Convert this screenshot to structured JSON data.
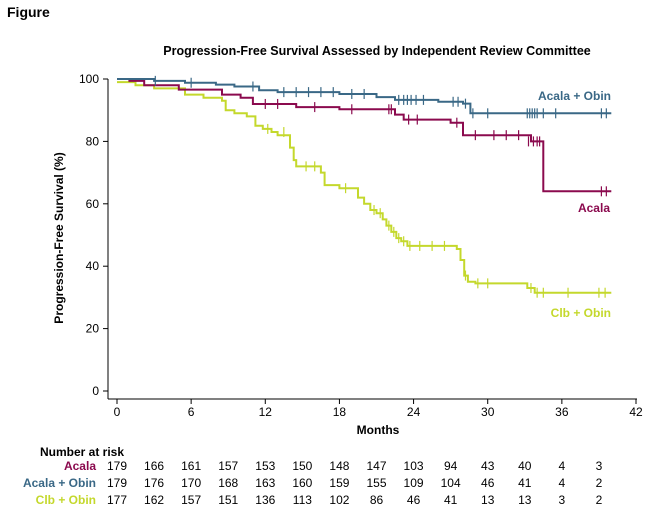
{
  "figure_label": "Figure",
  "colors": {
    "acala": "#8b0a4e",
    "acala_obin": "#3a6886",
    "clb_obin": "#c4d82c",
    "axis": "#000000"
  },
  "chart_data": {
    "type": "line",
    "title": "Progression-Free Survival Assessed by Independent Review Committee",
    "xlabel": "Months",
    "ylabel": "Progression-Free Survival (%)",
    "xlim": [
      0,
      42
    ],
    "ylim": [
      0,
      100
    ],
    "xticks": [
      0,
      6,
      12,
      18,
      24,
      30,
      36,
      42
    ],
    "yticks": [
      0,
      20,
      40,
      60,
      80,
      100
    ],
    "grid": false,
    "series": [
      {
        "name": "Acala + Obin",
        "color": "#3a6886",
        "step_points": [
          [
            0,
            100
          ],
          [
            3,
            99.4
          ],
          [
            5.5,
            98.8
          ],
          [
            8,
            98.2
          ],
          [
            9.5,
            97.6
          ],
          [
            11.5,
            96.4
          ],
          [
            13,
            95.8
          ],
          [
            18,
            95.2
          ],
          [
            21,
            94.2
          ],
          [
            22.5,
            93.3
          ],
          [
            26,
            92.7
          ],
          [
            28,
            92.1
          ],
          [
            28.6,
            89
          ],
          [
            40,
            89
          ]
        ],
        "censors": [
          [
            3.1,
            99.4
          ],
          [
            6,
            98.8
          ],
          [
            11,
            97.6
          ],
          [
            13.5,
            95.8
          ],
          [
            14.5,
            95.8
          ],
          [
            15.5,
            95.8
          ],
          [
            16.5,
            95.8
          ],
          [
            17.5,
            95.8
          ],
          [
            19,
            95.2
          ],
          [
            20,
            95.2
          ],
          [
            22.8,
            93.3
          ],
          [
            23.2,
            93.3
          ],
          [
            23.5,
            93.3
          ],
          [
            23.8,
            93.3
          ],
          [
            24.2,
            93.3
          ],
          [
            24.8,
            93.3
          ],
          [
            27.2,
            92.7
          ],
          [
            27.6,
            92.7
          ],
          [
            28.2,
            92.1
          ],
          [
            28.8,
            89
          ],
          [
            30,
            89
          ],
          [
            33.2,
            89
          ],
          [
            33.4,
            89
          ],
          [
            33.6,
            89
          ],
          [
            33.8,
            89
          ],
          [
            34,
            89
          ],
          [
            34.5,
            89
          ],
          [
            35.5,
            89
          ],
          [
            39.2,
            89
          ],
          [
            39.6,
            89
          ]
        ]
      },
      {
        "name": "Acala",
        "color": "#8b0a4e",
        "step_points": [
          [
            0,
            100
          ],
          [
            1,
            99.4
          ],
          [
            2.2,
            98
          ],
          [
            5,
            96.6
          ],
          [
            8.5,
            95
          ],
          [
            10,
            94
          ],
          [
            11,
            92
          ],
          [
            14.5,
            91
          ],
          [
            18,
            90.3
          ],
          [
            22.5,
            88.6
          ],
          [
            23.2,
            87
          ],
          [
            27,
            86
          ],
          [
            28,
            82
          ],
          [
            33.5,
            80
          ],
          [
            34.5,
            64
          ],
          [
            40,
            64
          ]
        ],
        "censors": [
          [
            12,
            92
          ],
          [
            13,
            92
          ],
          [
            16,
            91
          ],
          [
            19,
            90.3
          ],
          [
            22,
            90.3
          ],
          [
            22.2,
            90.3
          ],
          [
            23.6,
            87
          ],
          [
            24.3,
            87
          ],
          [
            27.5,
            86
          ],
          [
            29,
            82
          ],
          [
            30.5,
            82
          ],
          [
            31.5,
            82
          ],
          [
            32.5,
            82
          ],
          [
            33.3,
            80
          ],
          [
            33.7,
            80
          ],
          [
            34,
            80
          ],
          [
            34.2,
            80
          ],
          [
            39.2,
            64
          ],
          [
            39.6,
            64
          ]
        ]
      },
      {
        "name": "Clb + Obin",
        "color": "#c4d82c",
        "step_points": [
          [
            0,
            99
          ],
          [
            1.5,
            98
          ],
          [
            3,
            97
          ],
          [
            5.5,
            95
          ],
          [
            7,
            94
          ],
          [
            8.5,
            93
          ],
          [
            8.8,
            90
          ],
          [
            9.5,
            89
          ],
          [
            10.5,
            88
          ],
          [
            11.2,
            85
          ],
          [
            11.8,
            84
          ],
          [
            12.5,
            83
          ],
          [
            13,
            82
          ],
          [
            14,
            78
          ],
          [
            14.3,
            74
          ],
          [
            14.5,
            72
          ],
          [
            16.5,
            70
          ],
          [
            16.8,
            66
          ],
          [
            18,
            65
          ],
          [
            19.5,
            62
          ],
          [
            20,
            60
          ],
          [
            20.5,
            58
          ],
          [
            21,
            57
          ],
          [
            21.5,
            55
          ],
          [
            21.8,
            53
          ],
          [
            22.2,
            51
          ],
          [
            22.6,
            49
          ],
          [
            23,
            48
          ],
          [
            23.5,
            46.5
          ],
          [
            27.5,
            45.5
          ],
          [
            27.8,
            42
          ],
          [
            28.1,
            37
          ],
          [
            28.4,
            35
          ],
          [
            29,
            34.5
          ],
          [
            33.2,
            33
          ],
          [
            33.8,
            31.5
          ],
          [
            40,
            31.5
          ]
        ],
        "censors": [
          [
            12.2,
            84
          ],
          [
            13.5,
            83
          ],
          [
            15.3,
            72
          ],
          [
            16,
            72
          ],
          [
            18.5,
            65
          ],
          [
            20.8,
            58
          ],
          [
            21.3,
            57
          ],
          [
            22,
            53
          ],
          [
            22.4,
            51
          ],
          [
            22.8,
            49
          ],
          [
            23.2,
            48
          ],
          [
            23.7,
            46.5
          ],
          [
            24.5,
            46.5
          ],
          [
            25.5,
            46.5
          ],
          [
            26.5,
            46.5
          ],
          [
            28.2,
            37
          ],
          [
            29.2,
            34.5
          ],
          [
            30,
            34.5
          ],
          [
            33.5,
            33
          ],
          [
            34,
            31.5
          ],
          [
            34.5,
            31.5
          ],
          [
            36.5,
            31.5
          ],
          [
            39,
            31.5
          ],
          [
            39.5,
            31.5
          ]
        ]
      }
    ]
  },
  "risk_table": {
    "title": "Number at risk",
    "rows": [
      {
        "name": "Acala",
        "color": "#8b0a4e",
        "values": [
          "179",
          "166",
          "161",
          "157",
          "153",
          "150",
          "148",
          "147",
          "103",
          "94",
          "43",
          "40",
          "4",
          "3"
        ]
      },
      {
        "name": "Acala + Obin",
        "color": "#3a6886",
        "values": [
          "179",
          "176",
          "170",
          "168",
          "163",
          "160",
          "159",
          "155",
          "109",
          "104",
          "46",
          "41",
          "4",
          "2"
        ]
      },
      {
        "name": "Clb + Obin",
        "color": "#c4d82c",
        "values": [
          "177",
          "162",
          "157",
          "151",
          "136",
          "113",
          "102",
          "86",
          "46",
          "41",
          "13",
          "13",
          "3",
          "2"
        ]
      }
    ],
    "timepoints": [
      0,
      3,
      6,
      9,
      12,
      15,
      18,
      21,
      24,
      27,
      30,
      33,
      36,
      39
    ]
  }
}
